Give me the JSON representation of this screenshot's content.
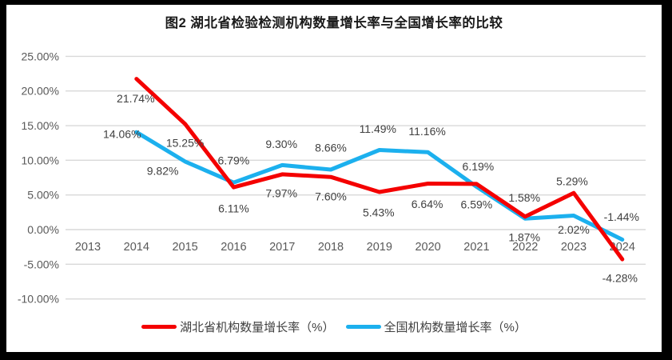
{
  "title": "图2  湖北省检验检测机构数量增长率与全国增长率的比较",
  "colors": {
    "hubei": "#f40000",
    "national": "#1cb0ee",
    "grid": "#d9d9d9",
    "tick_text": "#595959",
    "data_label_text": "#404040",
    "frame": "#000000",
    "background": "#ffffff"
  },
  "legend": {
    "items": [
      {
        "key": "hubei",
        "label": "湖北省机构数量增长率（%）"
      },
      {
        "key": "national",
        "label": "全国机构数量增长率（%）"
      }
    ]
  },
  "chart_data": {
    "type": "line",
    "title": "图2  湖北省检验检测机构数量增长率与全国增长率的比较",
    "categories": [
      "2013",
      "2014",
      "2015",
      "2016",
      "2017",
      "2018",
      "2019",
      "2020",
      "2021",
      "2022",
      "2023",
      "2024"
    ],
    "xlabel": "",
    "ylabel": "",
    "ylim": [
      -10,
      25
    ],
    "grid": true,
    "legend_position": "bottom",
    "y_ticks": [
      {
        "value": 25,
        "label": "25.00%"
      },
      {
        "value": 20,
        "label": "20.00%"
      },
      {
        "value": 15,
        "label": "15.00%"
      },
      {
        "value": 10,
        "label": "10.00%"
      },
      {
        "value": 5,
        "label": "5.00%"
      },
      {
        "value": 0,
        "label": "0.00%"
      },
      {
        "value": -5,
        "label": "-5.00%"
      },
      {
        "value": -10,
        "label": "-10.00%"
      }
    ],
    "series": [
      {
        "key": "national",
        "name": "全国机构数量增长率（%）",
        "color": "#1cb0ee",
        "start_index": 1,
        "x": [
          "2014",
          "2015",
          "2016",
          "2017",
          "2018",
          "2019",
          "2020",
          "2021",
          "2022",
          "2023",
          "2024"
        ],
        "values": [
          14.06,
          9.82,
          6.79,
          9.3,
          8.66,
          11.49,
          11.16,
          6.19,
          1.58,
          2.02,
          -1.44
        ],
        "labels": [
          "14.06%",
          "9.82%",
          "6.79%",
          "9.30%",
          "8.66%",
          "11.49%",
          "11.16%",
          "6.19%",
          "1.58%",
          "2.02%",
          "-1.44%"
        ],
        "label_offsets": [
          [
            -18,
            3
          ],
          [
            -28,
            12
          ],
          [
            0,
            -27
          ],
          [
            -1,
            -26
          ],
          [
            0,
            -27
          ],
          [
            -2,
            -26
          ],
          [
            -1,
            -26
          ],
          [
            2,
            -25
          ],
          [
            -1,
            -26
          ],
          [
            0,
            18
          ],
          [
            -1,
            -28
          ]
        ]
      },
      {
        "key": "hubei",
        "name": "湖北省机构数量增长率（%）",
        "color": "#f40000",
        "start_index": 1,
        "x": [
          "2014",
          "2015",
          "2016",
          "2017",
          "2018",
          "2019",
          "2020",
          "2021",
          "2022",
          "2023",
          "2024"
        ],
        "values": [
          21.74,
          15.25,
          6.11,
          7.97,
          7.6,
          5.43,
          6.64,
          6.59,
          1.87,
          5.29,
          -4.28
        ],
        "labels": [
          "21.74%",
          "15.25%",
          "6.11%",
          "7.97%",
          "7.60%",
          "5.43%",
          "6.64%",
          "6.59%",
          "1.87%",
          "5.29%",
          "-4.28%"
        ],
        "label_offsets": [
          [
            -1,
            25
          ],
          [
            0,
            24
          ],
          [
            0,
            27
          ],
          [
            -1,
            24
          ],
          [
            0,
            25
          ],
          [
            -1,
            26
          ],
          [
            -1,
            26
          ],
          [
            0,
            26
          ],
          [
            -1,
            26
          ],
          [
            -2,
            -14
          ],
          [
            -3,
            24
          ]
        ]
      }
    ]
  }
}
